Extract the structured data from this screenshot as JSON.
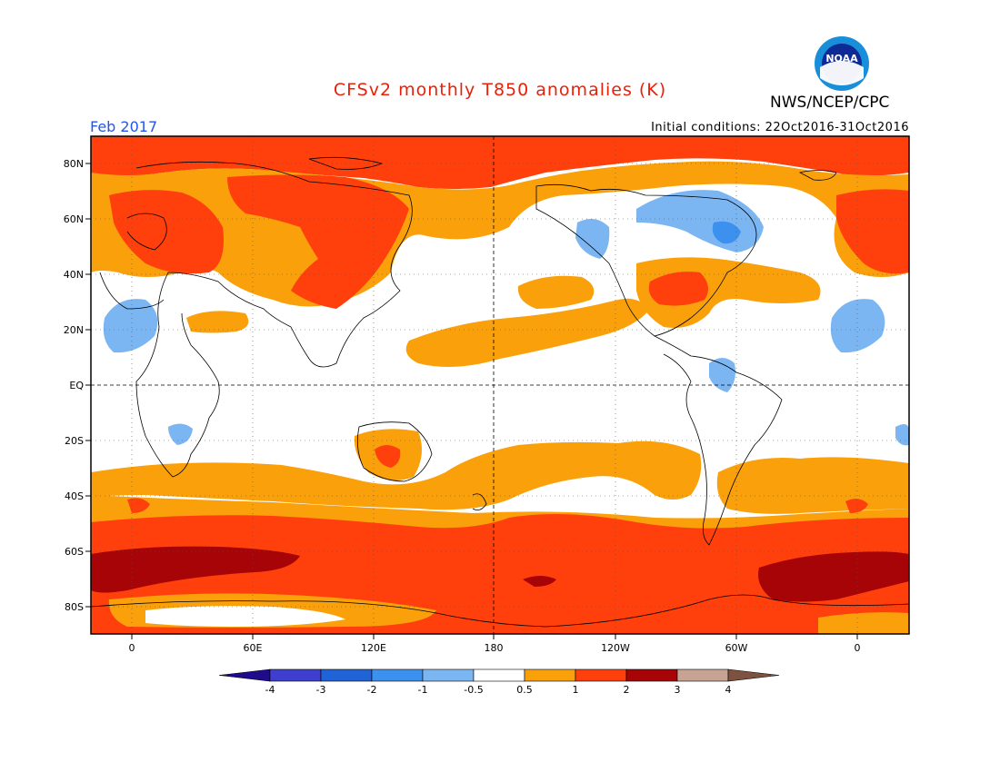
{
  "header": {
    "title": "CFSv2 monthly T850 anomalies (K)",
    "agency": "NWS/NCEP/CPC",
    "logo_text": "NOAA",
    "month": "Feb 2017",
    "initial_conditions": "Initial conditions: 22Oct2016-31Oct2016"
  },
  "map": {
    "lat_labels": [
      "80N",
      "60N",
      "40N",
      "20N",
      "EQ",
      "20S",
      "40S",
      "60S",
      "80S"
    ],
    "lon_labels": [
      "0",
      "60E",
      "120E",
      "180",
      "120W",
      "60W",
      "0"
    ]
  },
  "legend": {
    "labels": [
      "-4",
      "-3",
      "-2",
      "-1",
      "-0.5",
      "0.5",
      "1",
      "2",
      "3",
      "4"
    ],
    "colors": [
      "#1e0c8c",
      "#3f3fcf",
      "#1f63d6",
      "#3d91ee",
      "#7cb6f2",
      "#ffffff",
      "#f9a00b",
      "#ff3f0c",
      "#a60406",
      "#c7a394",
      "#7d5241"
    ]
  },
  "colors": {
    "title": "#e8210a",
    "month": "#2255ee",
    "anomaly_weak_warm": "#f9a00b",
    "anomaly_warm": "#ff3f0c",
    "anomaly_strong_warm": "#a60406",
    "anomaly_weak_cold": "#7cb6f2",
    "anomaly_cold": "#3d91ee"
  }
}
